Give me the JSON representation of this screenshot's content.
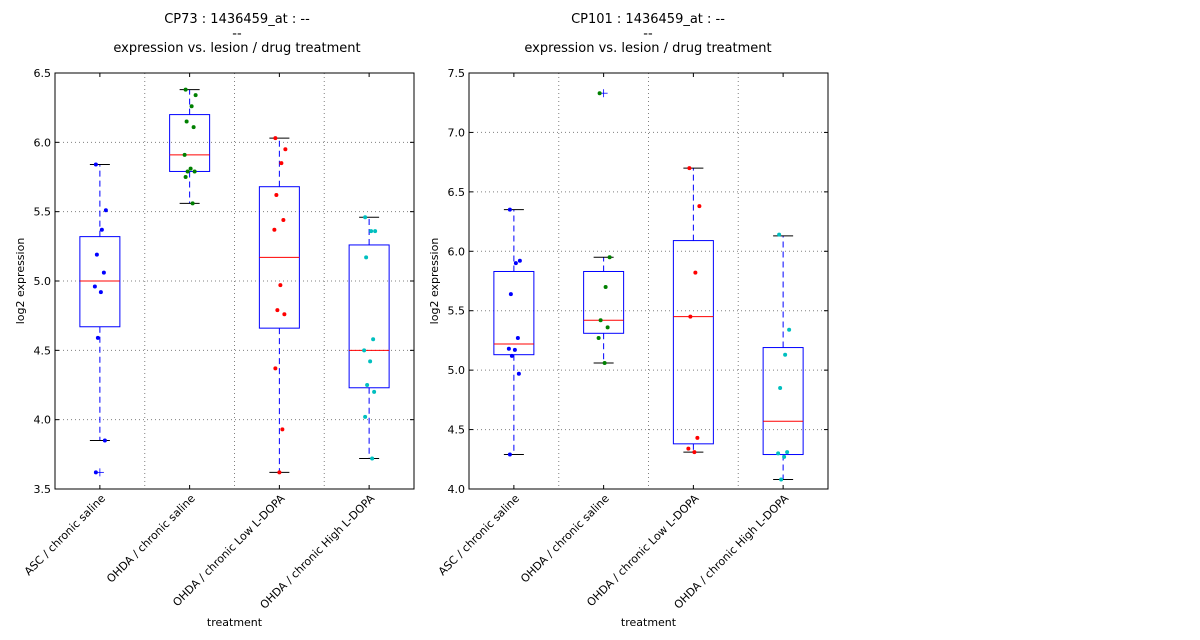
{
  "chart_data": [
    {
      "type": "box",
      "title_lines": [
        "CP73 : 1436459_at : --",
        "--",
        "expression vs. lesion / drug treatment"
      ],
      "xlabel": "treatment",
      "ylabel": "log2 expression",
      "ylim": [
        3.5,
        6.5
      ],
      "yticks": [
        "3.5",
        "4.0",
        "4.5",
        "5.0",
        "5.5",
        "6.0",
        "6.5"
      ],
      "grid": true,
      "categories": [
        "ASC / chronic saline",
        "OHDA / chronic saline",
        "OHDA / chronic Low L-DOPA",
        "OHDA / chronic High L-DOPA"
      ],
      "colors": [
        "#0000ff",
        "#008000",
        "#ff0000",
        "#00bfbf"
      ],
      "boxes": [
        {
          "whisker_low": 3.85,
          "q1": 4.67,
          "median": 5.0,
          "q3": 5.32,
          "whisker_high": 5.84,
          "outliers": [
            3.62
          ],
          "points": [
            5.84,
            5.51,
            5.37,
            5.19,
            5.06,
            4.96,
            4.92,
            4.59,
            3.85,
            3.62
          ]
        },
        {
          "whisker_low": 5.56,
          "q1": 5.79,
          "median": 5.91,
          "q3": 6.2,
          "whisker_high": 6.38,
          "outliers": [],
          "points": [
            6.38,
            6.34,
            6.26,
            6.15,
            6.11,
            5.91,
            5.81,
            5.79,
            5.79,
            5.75,
            5.56
          ]
        },
        {
          "whisker_low": 3.62,
          "q1": 4.66,
          "median": 5.17,
          "q3": 5.68,
          "whisker_high": 6.03,
          "outliers": [],
          "points": [
            6.03,
            5.95,
            5.85,
            5.62,
            5.44,
            5.37,
            4.97,
            4.79,
            4.76,
            4.37,
            3.93,
            3.62
          ]
        },
        {
          "whisker_low": 3.72,
          "q1": 4.23,
          "median": 4.5,
          "q3": 5.26,
          "whisker_high": 5.46,
          "outliers": [],
          "points": [
            5.46,
            5.36,
            5.36,
            5.17,
            4.58,
            4.5,
            4.42,
            4.25,
            4.2,
            4.02,
            3.72
          ]
        }
      ]
    },
    {
      "type": "box",
      "title_lines": [
        "CP101 : 1436459_at : --",
        "--",
        "expression vs. lesion / drug treatment"
      ],
      "xlabel": "treatment",
      "ylabel": "log2 expression",
      "ylim": [
        4.0,
        7.5
      ],
      "yticks": [
        "4.0",
        "4.5",
        "5.0",
        "5.5",
        "6.0",
        "6.5",
        "7.0",
        "7.5"
      ],
      "grid": true,
      "categories": [
        "ASC / chronic saline",
        "OHDA / chronic saline",
        "OHDA / chronic Low L-DOPA",
        "OHDA / chronic High L-DOPA"
      ],
      "colors": [
        "#0000ff",
        "#008000",
        "#ff0000",
        "#00bfbf"
      ],
      "boxes": [
        {
          "whisker_low": 4.29,
          "q1": 5.13,
          "median": 5.22,
          "q3": 5.83,
          "whisker_high": 6.35,
          "outliers": [],
          "points": [
            6.35,
            5.92,
            5.9,
            5.64,
            5.27,
            5.18,
            5.17,
            5.12,
            4.97,
            4.29
          ]
        },
        {
          "whisker_low": 5.06,
          "q1": 5.31,
          "median": 5.42,
          "q3": 5.83,
          "whisker_high": 5.95,
          "outliers": [
            7.33
          ],
          "points": [
            7.33,
            5.95,
            5.7,
            5.42,
            5.36,
            5.27,
            5.06
          ]
        },
        {
          "whisker_low": 4.31,
          "q1": 4.38,
          "median": 5.45,
          "q3": 6.09,
          "whisker_high": 6.7,
          "outliers": [],
          "points": [
            6.7,
            6.38,
            5.82,
            5.45,
            4.43,
            4.34,
            4.31
          ]
        },
        {
          "whisker_low": 4.08,
          "q1": 4.29,
          "median": 4.57,
          "q3": 5.19,
          "whisker_high": 6.13,
          "outliers": [],
          "points": [
            6.14,
            5.34,
            5.13,
            4.85,
            4.31,
            4.3,
            4.27,
            4.08
          ]
        }
      ]
    }
  ]
}
